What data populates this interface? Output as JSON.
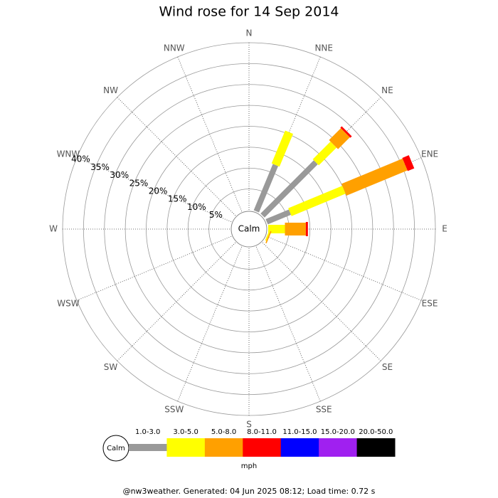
{
  "chart_data": {
    "type": "wind-rose",
    "title": "Wind rose for 14 Sep 2014",
    "directions": [
      "N",
      "NNE",
      "NE",
      "ENE",
      "E",
      "ESE",
      "SE",
      "SSE",
      "S",
      "SSW",
      "SW",
      "WSW",
      "W",
      "WNW",
      "NW",
      "NNW"
    ],
    "calm_label": "Calm",
    "rlim": [
      0,
      40
    ],
    "rticks": [
      {
        "value": 5,
        "label": "5%"
      },
      {
        "value": 10,
        "label": "10%"
      },
      {
        "value": 15,
        "label": "15%"
      },
      {
        "value": 20,
        "label": "20%"
      },
      {
        "value": 25,
        "label": "25%"
      },
      {
        "value": 30,
        "label": "30%"
      },
      {
        "value": 35,
        "label": "35%"
      },
      {
        "value": 40,
        "label": "40%"
      }
    ],
    "series": [
      {
        "name": "1.0-3.0",
        "color": "#999999",
        "values": [
          0,
          12,
          18,
          6,
          0,
          0,
          0,
          0,
          0,
          0,
          0,
          0,
          0,
          0,
          0,
          0
        ]
      },
      {
        "name": "3.0-5.0",
        "color": "#ffff00",
        "values": [
          0,
          8.5,
          6,
          14,
          4,
          0.3,
          0,
          0,
          0,
          0,
          0,
          0,
          0,
          0,
          0,
          0
        ]
      },
      {
        "name": "5.0-8.0",
        "color": "#ffa000",
        "values": [
          0,
          0,
          4,
          15.8,
          5,
          0.3,
          0,
          0,
          0,
          0,
          0,
          0,
          0,
          0,
          0,
          0
        ]
      },
      {
        "name": "8.0-11.0",
        "color": "#ff0000",
        "values": [
          0,
          0,
          0.5,
          1.7,
          0.5,
          0,
          0,
          0,
          0,
          0,
          0,
          0,
          0,
          0,
          0,
          0
        ]
      },
      {
        "name": "11.0-15.0",
        "color": "#0000ff",
        "values": [
          0,
          0,
          0,
          0,
          0,
          0,
          0,
          0,
          0,
          0,
          0,
          0,
          0,
          0,
          0,
          0
        ]
      },
      {
        "name": "15.0-20.0",
        "color": "#a020f0",
        "values": [
          0,
          0,
          0,
          0,
          0,
          0,
          0,
          0,
          0,
          0,
          0,
          0,
          0,
          0,
          0,
          0
        ]
      },
      {
        "name": "20.0-50.0",
        "color": "#000000",
        "values": [
          0,
          0,
          0,
          0,
          0,
          0,
          0,
          0,
          0,
          0,
          0,
          0,
          0,
          0,
          0,
          0
        ]
      }
    ],
    "legend_unit": "mph",
    "footer": "@nw3weather. Generated: 04 Jun 2025 08:12; Load time: 0.72 s"
  }
}
